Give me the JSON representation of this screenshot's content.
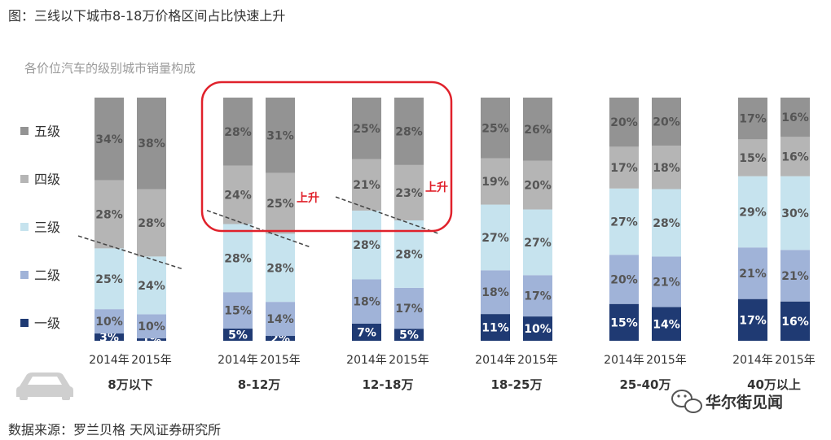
{
  "figure": {
    "title": "图：三线以下城市8-18万价格区间占比快速上升",
    "source": "数据来源：罗兰贝格 天风证券研究所"
  },
  "watermark": {
    "text": "华尔街见闻",
    "icon": "wechat-icon"
  },
  "chart_data": {
    "type": "bar",
    "stacked": true,
    "normalized_percent": true,
    "title": "各价位汽车的级别城市销量构成",
    "groups": [
      "8万以下",
      "8-12万",
      "12-18万",
      "18-25万",
      "25-40万",
      "40万以上"
    ],
    "years": [
      "2014年",
      "2015年"
    ],
    "series": [
      {
        "name": "一级",
        "color": "#1f3a73",
        "values": [
          [
            3,
            1
          ],
          [
            5,
            2
          ],
          [
            7,
            5
          ],
          [
            11,
            10
          ],
          [
            15,
            14
          ],
          [
            17,
            16
          ]
        ],
        "labels": [
          [
            "3%",
            "1%"
          ],
          [
            "5%",
            "2%"
          ],
          [
            "7%",
            "5%"
          ],
          [
            "11%",
            "10%"
          ],
          [
            "15%",
            "14%"
          ],
          [
            "17%",
            "16%"
          ]
        ]
      },
      {
        "name": "二级",
        "color": "#a0b3d8",
        "values": [
          [
            10,
            10
          ],
          [
            15,
            14
          ],
          [
            18,
            17
          ],
          [
            18,
            17
          ],
          [
            20,
            21
          ],
          [
            21,
            21
          ]
        ],
        "labels": [
          [
            "10%",
            "10%"
          ],
          [
            "15%",
            "14%"
          ],
          [
            "18%",
            "17%"
          ],
          [
            "18%",
            "17%"
          ],
          [
            "20%",
            "21%"
          ],
          [
            "21%",
            "21%"
          ]
        ]
      },
      {
        "name": "三级",
        "color": "#c6e3ee",
        "values": [
          [
            25,
            24
          ],
          [
            28,
            28
          ],
          [
            28,
            28
          ],
          [
            27,
            27
          ],
          [
            27,
            28
          ],
          [
            29,
            30
          ]
        ],
        "labels": [
          [
            "25%",
            "24%"
          ],
          [
            "28%",
            "28%"
          ],
          [
            "28%",
            "28%"
          ],
          [
            "27%",
            "27%"
          ],
          [
            "27%",
            "28%"
          ],
          [
            "29%",
            "30%"
          ]
        ]
      },
      {
        "name": "四级",
        "color": "#b5b5b5",
        "values": [
          [
            28,
            28
          ],
          [
            24,
            25
          ],
          [
            21,
            23
          ],
          [
            19,
            20
          ],
          [
            17,
            18
          ],
          [
            15,
            16
          ]
        ],
        "labels": [
          [
            "28%",
            "28%"
          ],
          [
            "24%",
            "25%"
          ],
          [
            "21%",
            "23%"
          ],
          [
            "19%",
            "20%"
          ],
          [
            "17%",
            "18%"
          ],
          [
            "15%",
            "16%"
          ]
        ]
      },
      {
        "name": "五级",
        "color": "#939393",
        "values": [
          [
            34,
            38
          ],
          [
            28,
            31
          ],
          [
            25,
            28
          ],
          [
            25,
            26
          ],
          [
            20,
            20
          ],
          [
            17,
            16
          ]
        ],
        "labels": [
          [
            "34%",
            "38%"
          ],
          [
            "28%",
            "31%"
          ],
          [
            "25%",
            "28%"
          ],
          [
            "25%",
            "26%"
          ],
          [
            "20%",
            "20%"
          ],
          [
            "17%",
            "16%"
          ]
        ]
      }
    ],
    "legend_order": [
      "五级",
      "四级",
      "三级",
      "二级",
      "一级"
    ],
    "legend_position": "left",
    "annotations": [
      {
        "text": "上升",
        "group": "8-12万"
      },
      {
        "text": "上升",
        "group": "12-18万"
      }
    ],
    "highlight_groups": [
      "8-12万",
      "12-18万"
    ],
    "highlight_color": "#e0212b"
  }
}
